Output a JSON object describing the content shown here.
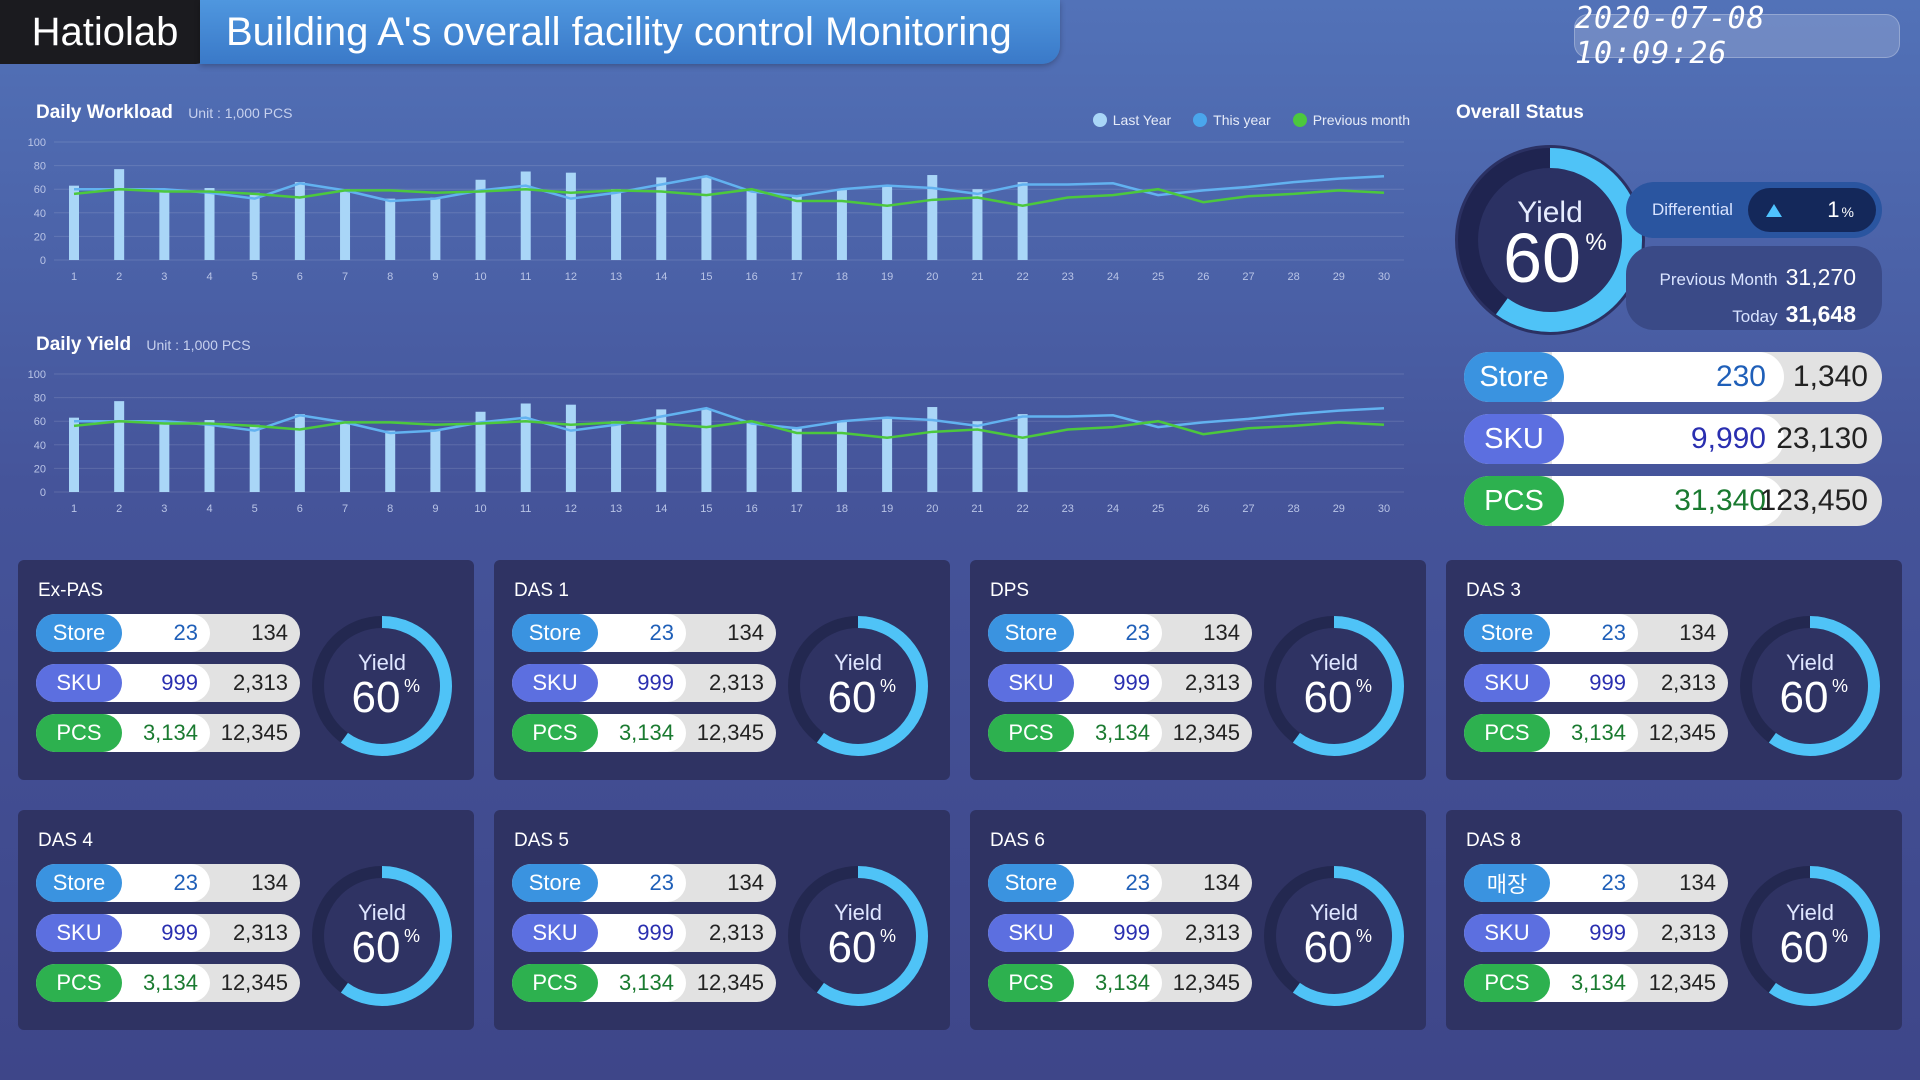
{
  "header": {
    "logo": "Hatiolab",
    "title": "Building A's overall facility control Monitoring",
    "datetime": "2020-07-08 10:09:26"
  },
  "legend": [
    {
      "label": "Last Year",
      "color": "#a9d6f7"
    },
    {
      "label": "This year",
      "color": "#4aa6ec"
    },
    {
      "label": "Previous month",
      "color": "#4cc83d"
    }
  ],
  "chart_data": [
    {
      "type": "bar",
      "title": "Daily Workload",
      "unit": "Unit : 1,000 PCS",
      "categories": [
        "1",
        "2",
        "3",
        "4",
        "5",
        "6",
        "7",
        "8",
        "9",
        "10",
        "11",
        "12",
        "13",
        "14",
        "15",
        "16",
        "17",
        "18",
        "19",
        "20",
        "21",
        "22",
        "23",
        "24",
        "25",
        "26",
        "27",
        "28",
        "29",
        "30"
      ],
      "ylim": [
        0,
        100
      ],
      "yticks": [
        0,
        20,
        40,
        60,
        80,
        100
      ],
      "grid": true,
      "legend": "top-right",
      "series": [
        {
          "name": "Last Year",
          "type": "bar",
          "values": [
            63,
            77,
            59,
            61,
            57,
            66,
            60,
            52,
            53,
            68,
            75,
            74,
            60,
            70,
            70,
            60,
            55,
            60,
            63,
            72,
            60,
            66,
            null,
            null,
            null,
            null,
            null,
            null,
            null,
            null
          ]
        },
        {
          "name": "This year",
          "type": "line",
          "values": [
            60,
            60,
            60,
            57,
            52,
            65,
            59,
            50,
            52,
            59,
            63,
            52,
            57,
            64,
            71,
            58,
            54,
            60,
            63,
            61,
            56,
            64,
            64,
            65,
            55,
            59,
            62,
            66,
            69,
            71
          ]
        },
        {
          "name": "Previous month",
          "type": "line",
          "values": [
            56,
            60,
            58,
            58,
            56,
            53,
            59,
            59,
            57,
            58,
            60,
            57,
            59,
            58,
            55,
            60,
            50,
            50,
            46,
            51,
            53,
            46,
            53,
            55,
            60,
            49,
            54,
            56,
            59,
            57
          ]
        }
      ]
    },
    {
      "type": "bar",
      "title": "Daily Yield",
      "unit": "Unit : 1,000 PCS",
      "categories": [
        "1",
        "2",
        "3",
        "4",
        "5",
        "6",
        "7",
        "8",
        "9",
        "10",
        "11",
        "12",
        "13",
        "14",
        "15",
        "16",
        "17",
        "18",
        "19",
        "20",
        "21",
        "22",
        "23",
        "24",
        "25",
        "26",
        "27",
        "28",
        "29",
        "30"
      ],
      "ylim": [
        0,
        100
      ],
      "yticks": [
        0,
        20,
        40,
        60,
        80,
        100
      ],
      "grid": true,
      "series": [
        {
          "name": "Last Year",
          "type": "bar",
          "values": [
            63,
            77,
            59,
            61,
            57,
            66,
            60,
            52,
            53,
            68,
            75,
            74,
            60,
            70,
            70,
            60,
            55,
            60,
            63,
            72,
            60,
            66,
            null,
            null,
            null,
            null,
            null,
            null,
            null,
            null
          ]
        },
        {
          "name": "This year",
          "type": "line",
          "values": [
            60,
            60,
            60,
            57,
            52,
            65,
            59,
            50,
            52,
            59,
            63,
            52,
            57,
            64,
            71,
            58,
            54,
            60,
            63,
            61,
            56,
            64,
            64,
            65,
            55,
            59,
            62,
            66,
            69,
            71
          ]
        },
        {
          "name": "Previous month",
          "type": "line",
          "values": [
            56,
            60,
            58,
            58,
            56,
            53,
            59,
            59,
            57,
            58,
            60,
            57,
            59,
            58,
            55,
            60,
            50,
            50,
            46,
            51,
            53,
            46,
            53,
            55,
            60,
            49,
            54,
            56,
            59,
            57
          ]
        }
      ]
    }
  ],
  "overall": {
    "title": "Overall Status",
    "yield_label": "Yield",
    "yield_value": "60",
    "yield_fraction": 0.6,
    "percent": "%",
    "differential_label": "Differential",
    "differential_value": "1",
    "prev_month_label": "Previous Month",
    "prev_month_value": "31,270",
    "today_label": "Today",
    "today_value": "31,648",
    "rows": [
      {
        "label": "Store",
        "v1": "230",
        "v2": "1,340"
      },
      {
        "label": "SKU",
        "v1": "9,990",
        "v2": "23,130"
      },
      {
        "label": "PCS",
        "v1": "31,340",
        "v2": "123,450"
      }
    ]
  },
  "colors": {
    "store": "#3a93e0",
    "sku": "#5c6fe0",
    "pcs": "#2db14f",
    "gauge_arc": "#4fc3f7",
    "gauge_track": "#262a52"
  },
  "cards": [
    {
      "title": "Ex-PAS",
      "store_label": "Store",
      "store_v1": "23",
      "store_v2": "134",
      "sku_label": "SKU",
      "sku_v1": "999",
      "sku_v2": "2,313",
      "pcs_label": "PCS",
      "pcs_v1": "3,134",
      "pcs_v2": "12,345",
      "yield_label": "Yield",
      "yield_value": "60",
      "percent": "%",
      "yield_fraction": 0.6
    },
    {
      "title": "DAS 1",
      "store_label": "Store",
      "store_v1": "23",
      "store_v2": "134",
      "sku_label": "SKU",
      "sku_v1": "999",
      "sku_v2": "2,313",
      "pcs_label": "PCS",
      "pcs_v1": "3,134",
      "pcs_v2": "12,345",
      "yield_label": "Yield",
      "yield_value": "60",
      "percent": "%",
      "yield_fraction": 0.6
    },
    {
      "title": "DPS",
      "store_label": "Store",
      "store_v1": "23",
      "store_v2": "134",
      "sku_label": "SKU",
      "sku_v1": "999",
      "sku_v2": "2,313",
      "pcs_label": "PCS",
      "pcs_v1": "3,134",
      "pcs_v2": "12,345",
      "yield_label": "Yield",
      "yield_value": "60",
      "percent": "%",
      "yield_fraction": 0.6
    },
    {
      "title": "DAS 3",
      "store_label": "Store",
      "store_v1": "23",
      "store_v2": "134",
      "sku_label": "SKU",
      "sku_v1": "999",
      "sku_v2": "2,313",
      "pcs_label": "PCS",
      "pcs_v1": "3,134",
      "pcs_v2": "12,345",
      "yield_label": "Yield",
      "yield_value": "60",
      "percent": "%",
      "yield_fraction": 0.6
    },
    {
      "title": "DAS 4",
      "store_label": "Store",
      "store_v1": "23",
      "store_v2": "134",
      "sku_label": "SKU",
      "sku_v1": "999",
      "sku_v2": "2,313",
      "pcs_label": "PCS",
      "pcs_v1": "3,134",
      "pcs_v2": "12,345",
      "yield_label": "Yield",
      "yield_value": "60",
      "percent": "%",
      "yield_fraction": 0.6
    },
    {
      "title": "DAS 5",
      "store_label": "Store",
      "store_v1": "23",
      "store_v2": "134",
      "sku_label": "SKU",
      "sku_v1": "999",
      "sku_v2": "2,313",
      "pcs_label": "PCS",
      "pcs_v1": "3,134",
      "pcs_v2": "12,345",
      "yield_label": "Yield",
      "yield_value": "60",
      "percent": "%",
      "yield_fraction": 0.6
    },
    {
      "title": "DAS 6",
      "store_label": "Store",
      "store_v1": "23",
      "store_v2": "134",
      "sku_label": "SKU",
      "sku_v1": "999",
      "sku_v2": "2,313",
      "pcs_label": "PCS",
      "pcs_v1": "3,134",
      "pcs_v2": "12,345",
      "yield_label": "Yield",
      "yield_value": "60",
      "percent": "%",
      "yield_fraction": 0.6
    },
    {
      "title": "DAS 8",
      "store_label": "매장",
      "store_v1": "23",
      "store_v2": "134",
      "sku_label": "SKU",
      "sku_v1": "999",
      "sku_v2": "2,313",
      "pcs_label": "PCS",
      "pcs_v1": "3,134",
      "pcs_v2": "12,345",
      "yield_label": "Yield",
      "yield_value": "60",
      "percent": "%",
      "yield_fraction": 0.6
    }
  ]
}
